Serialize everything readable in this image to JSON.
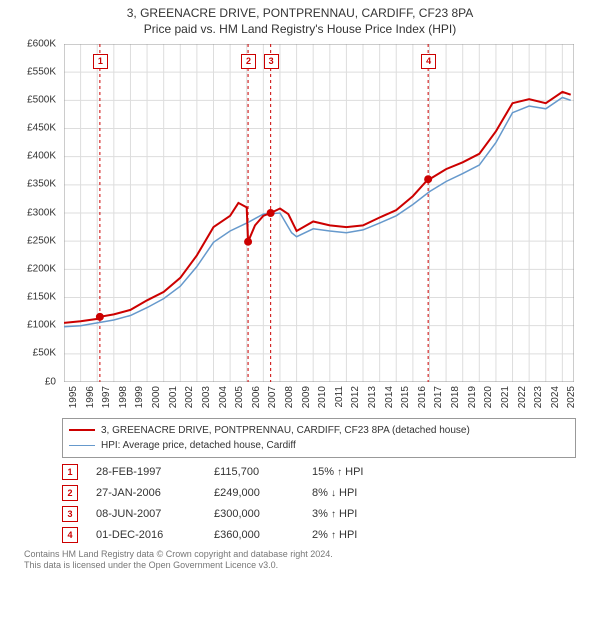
{
  "title_line1": "3, GREENACRE DRIVE, PONTPRENNAU, CARDIFF, CF23 8PA",
  "title_line2": "Price paid vs. HM Land Registry's House Price Index (HPI)",
  "chart": {
    "type": "line",
    "background_color": "#ffffff",
    "grid_color": "#dddddd",
    "axis_color": "#999999",
    "xlim": [
      1995,
      2025.7
    ],
    "ylim": [
      0,
      600000
    ],
    "ytick_step": 50000,
    "yticks": [
      "£0",
      "£50K",
      "£100K",
      "£150K",
      "£200K",
      "£250K",
      "£300K",
      "£350K",
      "£400K",
      "£450K",
      "£500K",
      "£550K",
      "£600K"
    ],
    "xticks": [
      1995,
      1996,
      1997,
      1998,
      1999,
      2000,
      2001,
      2002,
      2003,
      2004,
      2005,
      2006,
      2007,
      2008,
      2009,
      2010,
      2011,
      2012,
      2013,
      2014,
      2015,
      2016,
      2017,
      2018,
      2019,
      2020,
      2021,
      2022,
      2023,
      2024,
      2025
    ],
    "label_fontsize": 10,
    "series": [
      {
        "name": "prop",
        "color": "#cc0000",
        "line_width": 2,
        "points": [
          [
            1995,
            105
          ],
          [
            1996,
            108
          ],
          [
            1997,
            112
          ],
          [
            1997.16,
            115.7
          ],
          [
            1998,
            120
          ],
          [
            1999,
            128
          ],
          [
            2000,
            145
          ],
          [
            2001,
            160
          ],
          [
            2002,
            185
          ],
          [
            2003,
            225
          ],
          [
            2004,
            275
          ],
          [
            2005,
            295
          ],
          [
            2005.5,
            318
          ],
          [
            2006,
            310
          ],
          [
            2006.08,
            249
          ],
          [
            2006.5,
            278
          ],
          [
            2007,
            295
          ],
          [
            2007.44,
            300
          ],
          [
            2008,
            308
          ],
          [
            2008.5,
            298
          ],
          [
            2009,
            268
          ],
          [
            2010,
            285
          ],
          [
            2011,
            278
          ],
          [
            2012,
            275
          ],
          [
            2013,
            278
          ],
          [
            2014,
            292
          ],
          [
            2015,
            305
          ],
          [
            2016,
            330
          ],
          [
            2016.92,
            360
          ],
          [
            2017,
            360
          ],
          [
            2018,
            378
          ],
          [
            2019,
            390
          ],
          [
            2020,
            405
          ],
          [
            2021,
            445
          ],
          [
            2022,
            495
          ],
          [
            2023,
            502
          ],
          [
            2024,
            495
          ],
          [
            2025,
            515
          ],
          [
            2025.5,
            510
          ]
        ]
      },
      {
        "name": "hpi",
        "color": "#6699cc",
        "line_width": 1.5,
        "points": [
          [
            1995,
            98
          ],
          [
            1996,
            100
          ],
          [
            1997,
            105
          ],
          [
            1998,
            110
          ],
          [
            1999,
            118
          ],
          [
            2000,
            132
          ],
          [
            2001,
            148
          ],
          [
            2002,
            170
          ],
          [
            2003,
            205
          ],
          [
            2004,
            248
          ],
          [
            2005,
            268
          ],
          [
            2006,
            282
          ],
          [
            2007,
            298
          ],
          [
            2008,
            300
          ],
          [
            2008.7,
            265
          ],
          [
            2009,
            258
          ],
          [
            2010,
            272
          ],
          [
            2011,
            268
          ],
          [
            2012,
            265
          ],
          [
            2013,
            270
          ],
          [
            2014,
            282
          ],
          [
            2015,
            295
          ],
          [
            2016,
            315
          ],
          [
            2017,
            338
          ],
          [
            2018,
            356
          ],
          [
            2019,
            370
          ],
          [
            2020,
            385
          ],
          [
            2021,
            425
          ],
          [
            2022,
            478
          ],
          [
            2023,
            490
          ],
          [
            2024,
            485
          ],
          [
            2025,
            505
          ],
          [
            2025.5,
            500
          ]
        ]
      }
    ],
    "markers": [
      {
        "n": "1",
        "x": 1997.16,
        "y": 115.7,
        "box_y": 38
      },
      {
        "n": "2",
        "x": 2006.08,
        "y": 249,
        "box_y": 38
      },
      {
        "n": "3",
        "x": 2007.44,
        "y": 300,
        "box_y": 38
      },
      {
        "n": "4",
        "x": 2016.92,
        "y": 360,
        "box_y": 38
      }
    ]
  },
  "legend": {
    "items": [
      {
        "color": "#cc0000",
        "width": 2,
        "label": "3, GREENACRE DRIVE, PONTPRENNAU, CARDIFF, CF23 8PA (detached house)"
      },
      {
        "color": "#6699cc",
        "width": 1.5,
        "label": "HPI: Average price, detached house, Cardiff"
      }
    ]
  },
  "transactions": [
    {
      "n": "1",
      "date": "28-FEB-1997",
      "price": "£115,700",
      "diff": "15%",
      "arrow": "↑",
      "suffix": "HPI"
    },
    {
      "n": "2",
      "date": "27-JAN-2006",
      "price": "£249,000",
      "diff": "8%",
      "arrow": "↓",
      "suffix": "HPI"
    },
    {
      "n": "3",
      "date": "08-JUN-2007",
      "price": "£300,000",
      "diff": "3%",
      "arrow": "↑",
      "suffix": "HPI"
    },
    {
      "n": "4",
      "date": "01-DEC-2016",
      "price": "£360,000",
      "diff": "2%",
      "arrow": "↑",
      "suffix": "HPI"
    }
  ],
  "footer_line1": "Contains HM Land Registry data © Crown copyright and database right 2024.",
  "footer_line2": "This data is licensed under the Open Government Licence v3.0."
}
